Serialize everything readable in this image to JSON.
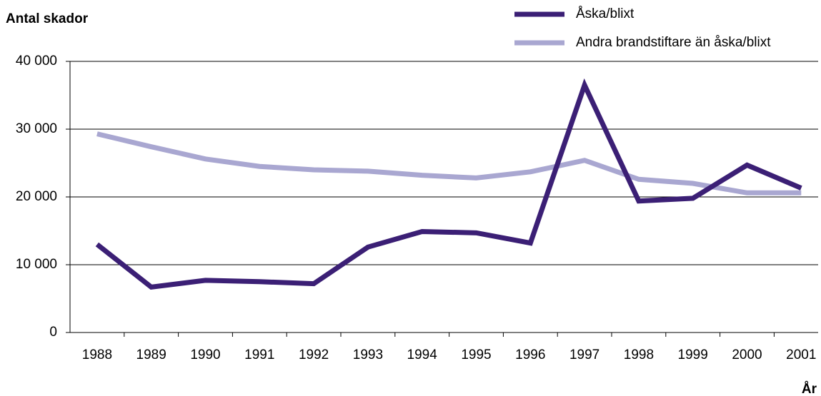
{
  "chart_data": {
    "type": "line",
    "y_label": "Antal skador",
    "x_label": "År",
    "categories": [
      "1988",
      "1989",
      "1990",
      "1991",
      "1992",
      "1993",
      "1994",
      "1995",
      "1996",
      "1997",
      "1998",
      "1999",
      "2000",
      "2001"
    ],
    "series": [
      {
        "name": "Åska/blixt",
        "color": "#3b1f75",
        "values": [
          13000,
          6700,
          7700,
          7500,
          7200,
          12600,
          14900,
          14700,
          13200,
          36500,
          19400,
          19800,
          24700,
          21300
        ]
      },
      {
        "name": "Andra brandstiftare än åska/blixt",
        "color": "#a9a7d1",
        "values": [
          29300,
          27400,
          25600,
          24500,
          24000,
          23800,
          23200,
          22800,
          23700,
          25400,
          22600,
          22000,
          20600,
          20600
        ]
      }
    ],
    "ylim": [
      0,
      40000
    ],
    "yticks": [
      {
        "value": 0,
        "label": "0"
      },
      {
        "value": 10000,
        "label": "10 000"
      },
      {
        "value": 20000,
        "label": "20 000"
      },
      {
        "value": 30000,
        "label": "30 000"
      },
      {
        "value": 40000,
        "label": "40 000"
      }
    ],
    "grid": true,
    "legend": "top-right"
  }
}
